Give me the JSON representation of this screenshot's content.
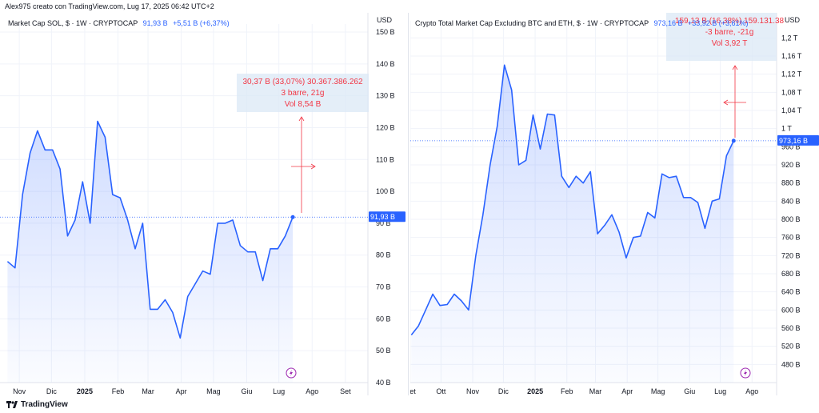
{
  "header": {
    "attribution": "Alex975 creato con TradingView.com, Lug 17, 2025 06:42 UTC+2"
  },
  "footer": {
    "brand": "TradingView"
  },
  "colors": {
    "line": "#2962ff",
    "measure": "#f23645",
    "measure_bg": "#dbe8f5",
    "grid": "#f0f3fa",
    "badge_bg": "#2962ff"
  },
  "left": {
    "legend_name": "Market Cap SOL, $ · 1W · CRYPTOCAP",
    "legend_value": "91,93 B",
    "legend_change": "+5,51 B (+6,37%)",
    "currency": "USD",
    "price_badge": "91,93 B",
    "measure": [
      "30,37 B (33,07%) 30.367.386.262",
      "3 barre, 21g",
      "Vol 8,54 B"
    ]
  },
  "right": {
    "legend_name": "Crypto Total Market Cap Excluding BTC and ETH, $ · 1W · CRYPTOCAP",
    "legend_value": "973,16 B",
    "legend_change": "+33,92 B (+3,61%)",
    "currency": "USD",
    "price_badge": "973,16 B",
    "measure": [
      "159,13 B (16,38%) 159.131.38",
      "-3 barre, -21g",
      "Vol 3,92 T"
    ]
  },
  "chart_data": [
    {
      "type": "line",
      "title": "Market Cap SOL, $ · 1W · CRYPTOCAP",
      "ylabel": "USD",
      "unit": "B",
      "ylim": [
        40,
        150
      ],
      "y_ticks": [
        "40 B",
        "50 B",
        "60 B",
        "70 B",
        "80 B",
        "90 B",
        "100 B",
        "110 B",
        "120 B",
        "130 B",
        "140 B",
        "150 B"
      ],
      "x_ticks": [
        "Nov",
        "Dic",
        "2025",
        "Feb",
        "Mar",
        "Apr",
        "Mag",
        "Giu",
        "Lug",
        "Ago",
        "Set"
      ],
      "x": [
        "2024-10-21",
        "2024-10-28",
        "2024-11-04",
        "2024-11-11",
        "2024-11-18",
        "2024-11-25",
        "2024-12-02",
        "2024-12-09",
        "2024-12-16",
        "2024-12-23",
        "2024-12-30",
        "2025-01-06",
        "2025-01-13",
        "2025-01-20",
        "2025-01-27",
        "2025-02-03",
        "2025-02-10",
        "2025-02-17",
        "2025-02-24",
        "2025-03-03",
        "2025-03-10",
        "2025-03-17",
        "2025-03-24",
        "2025-03-31",
        "2025-04-07",
        "2025-04-14",
        "2025-04-21",
        "2025-04-28",
        "2025-05-05",
        "2025-05-12",
        "2025-05-19",
        "2025-05-26",
        "2025-06-02",
        "2025-06-09",
        "2025-06-16",
        "2025-06-23",
        "2025-06-30",
        "2025-07-07",
        "2025-07-14"
      ],
      "values": [
        78,
        76,
        99,
        112,
        119,
        113,
        113,
        107,
        86,
        91,
        103,
        90,
        122,
        117,
        99,
        98,
        91,
        82,
        90,
        63,
        63,
        66,
        62,
        54,
        67,
        71,
        75,
        74,
        90,
        90,
        91,
        83,
        81,
        81,
        72,
        82,
        82,
        86,
        91.93
      ],
      "measure_tool": {
        "change": "30,37 B",
        "percent": "33,07%",
        "bars": 3,
        "days": 21,
        "volume": "8,54 B"
      }
    },
    {
      "type": "line",
      "title": "Crypto Total Market Cap Excluding BTC and ETH, $ · 1W · CRYPTOCAP",
      "ylabel": "USD",
      "unit": "B",
      "ylim": [
        440,
        1220
      ],
      "y_ticks": [
        "480 B",
        "520 B",
        "560 B",
        "600 B",
        "640 B",
        "680 B",
        "720 B",
        "760 B",
        "800 B",
        "840 B",
        "880 B",
        "920 B",
        "960 B",
        "1 T",
        "1,04 T",
        "1,08 T",
        "1,12 T",
        "1,16 T",
        "1,2 T"
      ],
      "x_ticks": [
        "Set",
        "Ott",
        "Nov",
        "Dic",
        "2025",
        "Feb",
        "Mar",
        "Apr",
        "Mag",
        "Giu",
        "Lug",
        "Ago"
      ],
      "x": [
        "2024-09-02",
        "2024-09-09",
        "2024-09-16",
        "2024-09-23",
        "2024-09-30",
        "2024-10-07",
        "2024-10-14",
        "2024-10-21",
        "2024-10-28",
        "2024-11-04",
        "2024-11-11",
        "2024-11-18",
        "2024-11-25",
        "2024-12-02",
        "2024-12-09",
        "2024-12-16",
        "2024-12-23",
        "2024-12-30",
        "2025-01-06",
        "2025-01-13",
        "2025-01-20",
        "2025-01-27",
        "2025-02-03",
        "2025-02-10",
        "2025-02-17",
        "2025-02-24",
        "2025-03-03",
        "2025-03-10",
        "2025-03-17",
        "2025-03-24",
        "2025-03-31",
        "2025-04-07",
        "2025-04-14",
        "2025-04-21",
        "2025-04-28",
        "2025-05-05",
        "2025-05-12",
        "2025-05-19",
        "2025-05-26",
        "2025-06-02",
        "2025-06-09",
        "2025-06-16",
        "2025-06-23",
        "2025-06-30",
        "2025-07-07",
        "2025-07-14"
      ],
      "values": [
        545,
        565,
        600,
        635,
        610,
        612,
        635,
        620,
        600,
        720,
        810,
        920,
        1005,
        1140,
        1085,
        920,
        930,
        1030,
        955,
        1032,
        1030,
        895,
        870,
        895,
        880,
        905,
        768,
        787,
        810,
        772,
        715,
        760,
        763,
        815,
        803,
        900,
        892,
        895,
        848,
        848,
        837,
        780,
        840,
        845,
        940,
        973.16
      ],
      "measure_tool": {
        "change": "159,13 B",
        "percent": "16,38%",
        "bars": -3,
        "days": -21,
        "volume": "3,92 T"
      }
    }
  ]
}
